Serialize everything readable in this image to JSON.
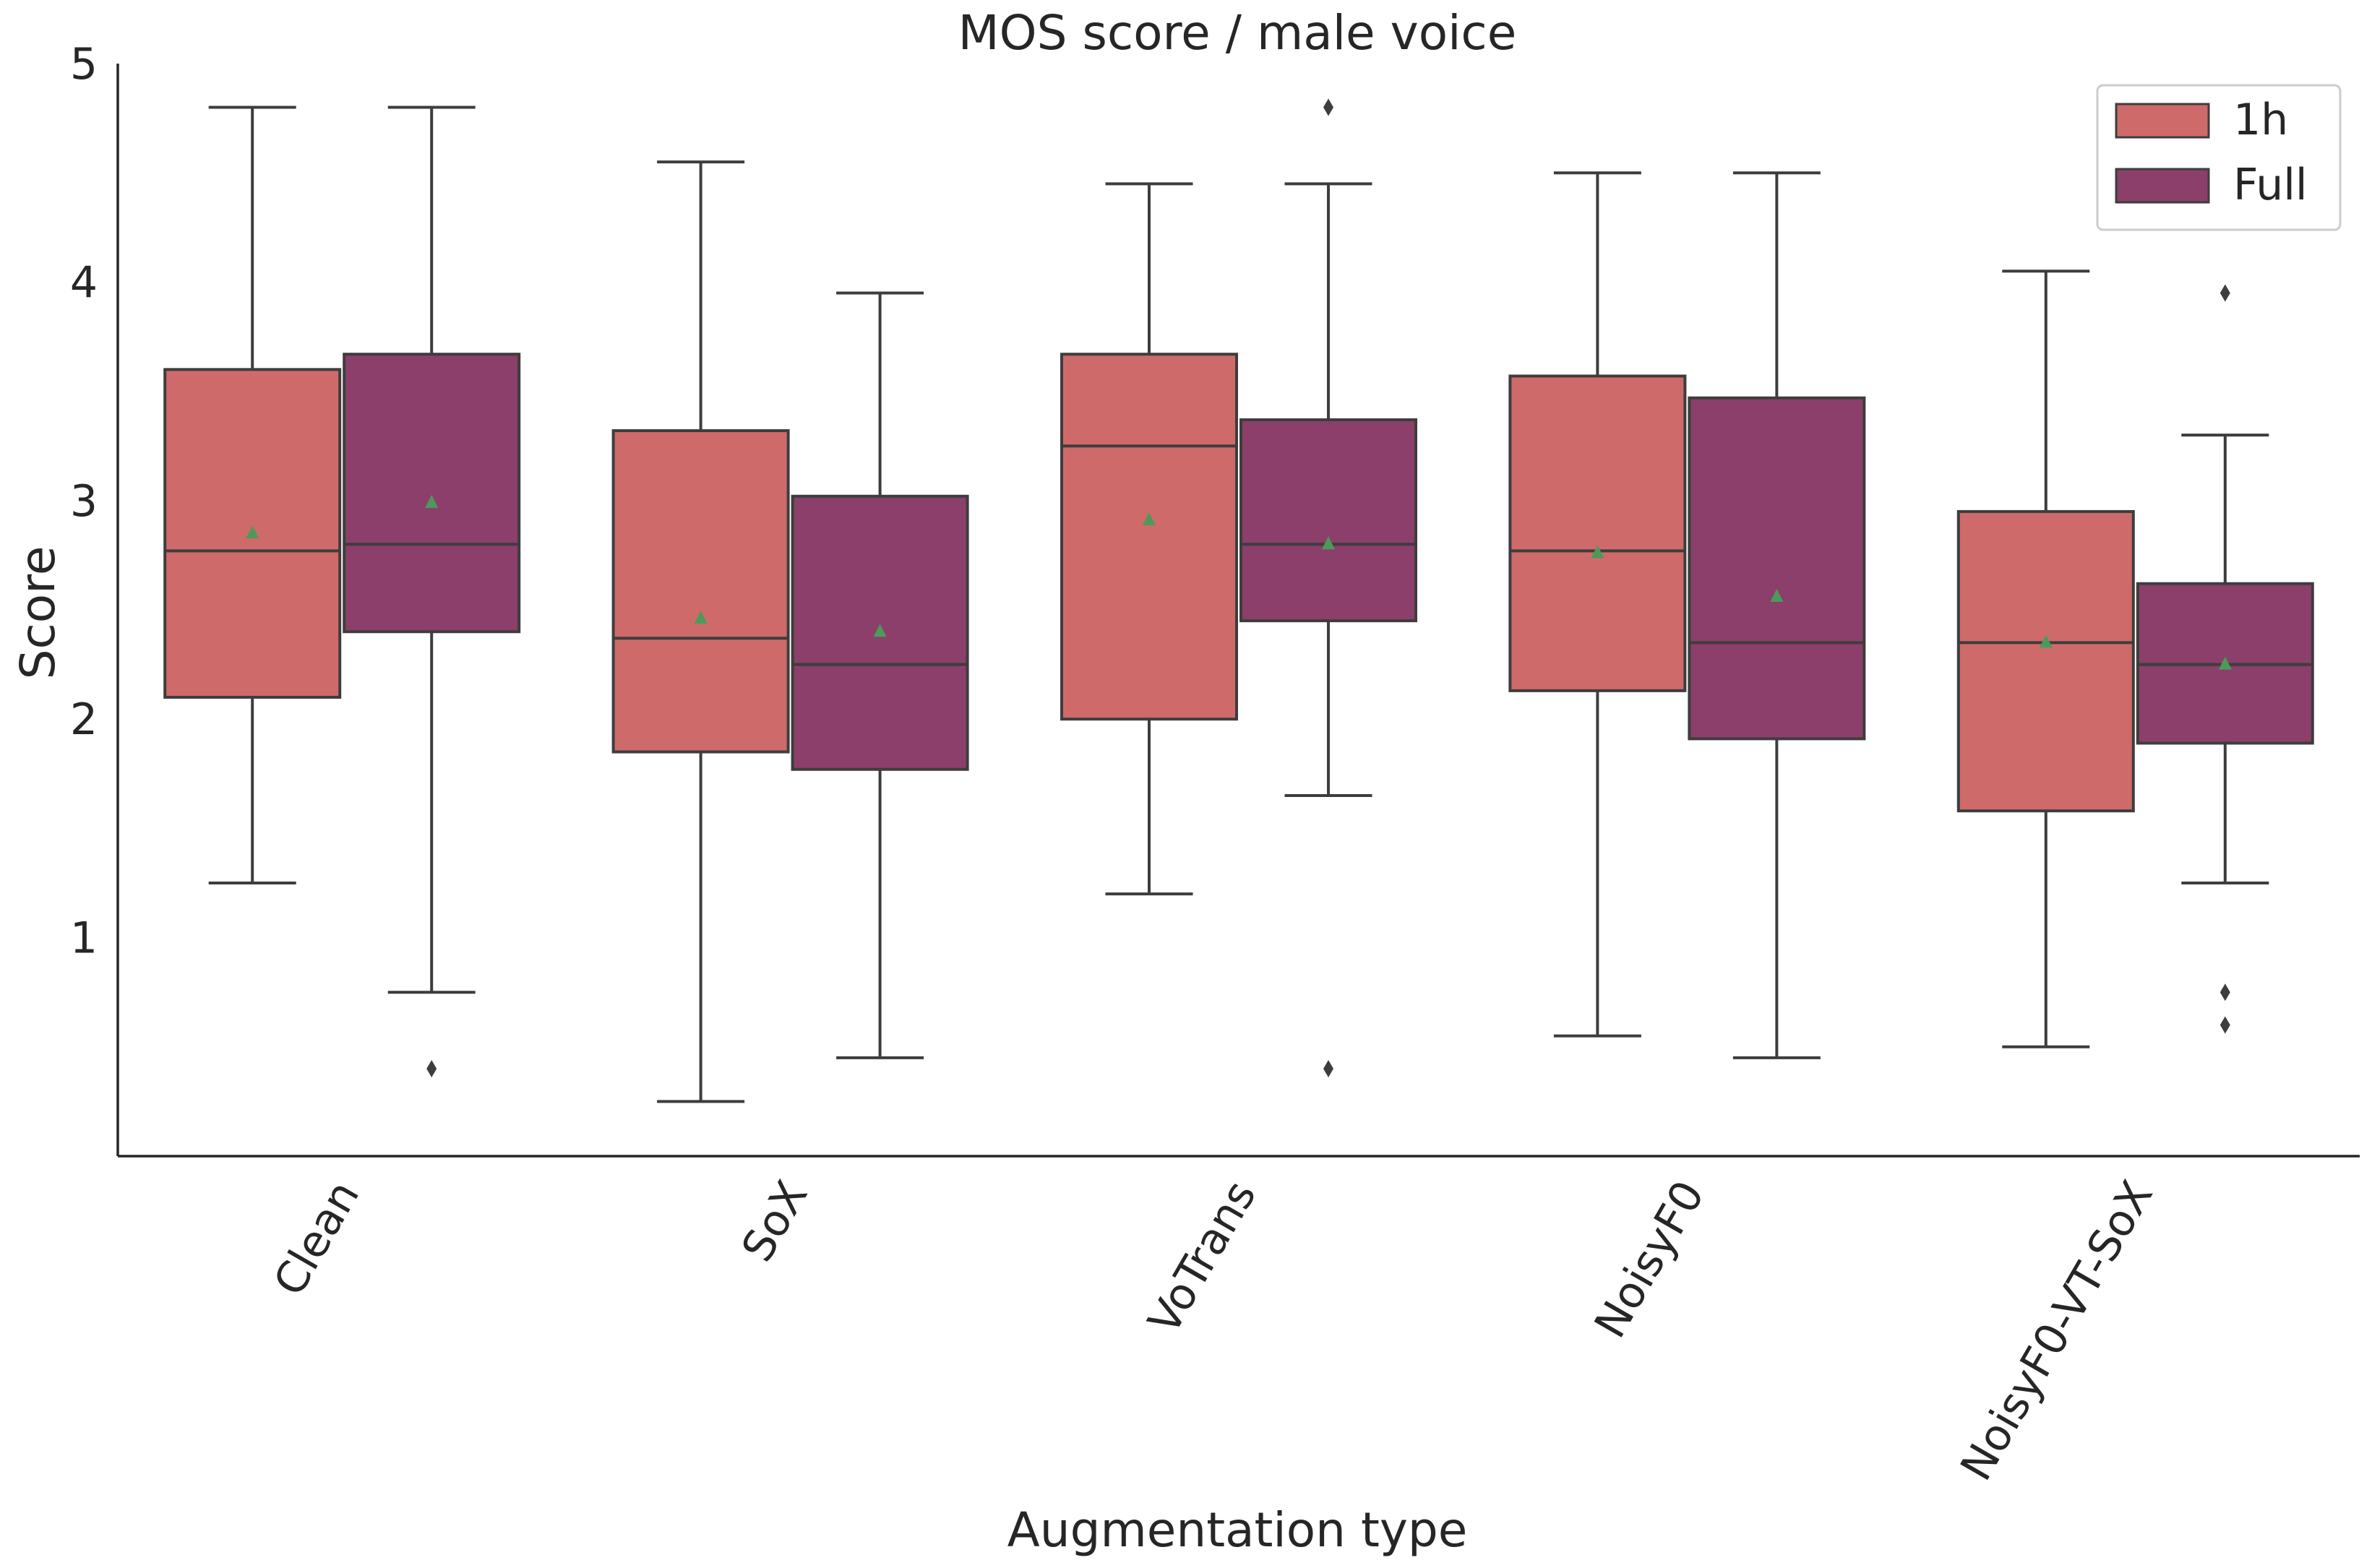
{
  "chart_data": {
    "type": "box",
    "title": "MOS score / male voice",
    "xlabel": "Augmentation type",
    "ylabel": "Score",
    "ylim": [
      0,
      5
    ],
    "yticks": [
      1,
      2,
      3,
      4,
      5
    ],
    "categories": [
      "Clean",
      "SoX",
      "VoTrans",
      "NoisyF0",
      "NoisyF0-VT-SoX"
    ],
    "legend_position": "top-right",
    "series": [
      {
        "name": "1h",
        "color": "#cf6a6a",
        "boxes": [
          {
            "whislo": 1.25,
            "q1": 2.1,
            "med": 2.77,
            "q3": 3.6,
            "whishi": 4.8,
            "mean": 2.85,
            "fliers": []
          },
          {
            "whislo": 0.25,
            "q1": 1.85,
            "med": 2.37,
            "q3": 3.32,
            "whishi": 4.55,
            "mean": 2.46,
            "fliers": []
          },
          {
            "whislo": 1.2,
            "q1": 2.0,
            "med": 3.25,
            "q3": 3.67,
            "whishi": 4.45,
            "mean": 2.91,
            "fliers": []
          },
          {
            "whislo": 0.55,
            "q1": 2.13,
            "med": 2.77,
            "q3": 3.57,
            "whishi": 4.5,
            "mean": 2.76,
            "fliers": []
          },
          {
            "whislo": 0.5,
            "q1": 1.58,
            "med": 2.35,
            "q3": 2.95,
            "whishi": 4.05,
            "mean": 2.35,
            "fliers": []
          }
        ]
      },
      {
        "name": "Full",
        "color": "#8b3f6a",
        "boxes": [
          {
            "whislo": 0.75,
            "q1": 2.4,
            "med": 2.8,
            "q3": 3.67,
            "whishi": 4.8,
            "mean": 2.99,
            "fliers": [
              0.4
            ]
          },
          {
            "whislo": 0.45,
            "q1": 1.77,
            "med": 2.25,
            "q3": 3.02,
            "whishi": 3.95,
            "mean": 2.4,
            "fliers": []
          },
          {
            "whislo": 1.65,
            "q1": 2.45,
            "med": 2.8,
            "q3": 3.37,
            "whishi": 4.45,
            "mean": 2.8,
            "fliers": [
              4.8,
              0.4
            ]
          },
          {
            "whislo": 0.45,
            "q1": 1.91,
            "med": 2.35,
            "q3": 3.47,
            "whishi": 4.5,
            "mean": 2.56,
            "fliers": []
          },
          {
            "whislo": 1.25,
            "q1": 1.89,
            "med": 2.25,
            "q3": 2.62,
            "whishi": 3.3,
            "mean": 2.25,
            "fliers": [
              3.95,
              0.75,
              0.6
            ]
          }
        ]
      }
    ],
    "mean_marker_color": "#4c9a5a",
    "median_line_color": "#3d3d3d"
  }
}
